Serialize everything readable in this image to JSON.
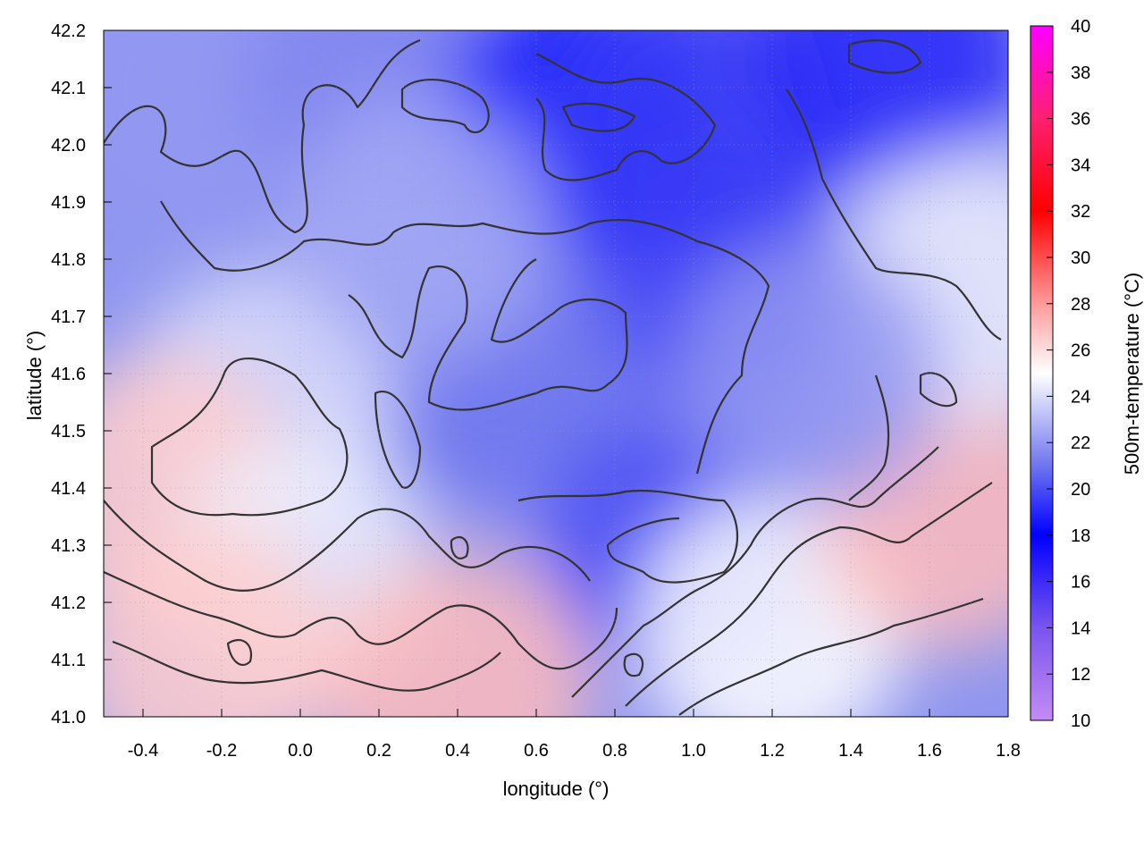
{
  "chart_data": {
    "type": "heatmap",
    "title": "",
    "xlabel": "longitude (°)",
    "ylabel": "latitude (°)",
    "colorbar_label": "500m-temperature (°C)",
    "xlim": [
      -0.5,
      1.8
    ],
    "ylim": [
      41.0,
      42.2
    ],
    "x_ticks": [
      "-0.4",
      "-0.2",
      "0.0",
      "0.2",
      "0.4",
      "0.6",
      "0.8",
      "1.0",
      "1.2",
      "1.4",
      "1.6",
      "1.8"
    ],
    "y_ticks": [
      "41.0",
      "41.1",
      "41.2",
      "41.3",
      "41.4",
      "41.5",
      "41.6",
      "41.7",
      "41.8",
      "41.9",
      "42.0",
      "42.1",
      "42.2"
    ],
    "colorbar_range": [
      10,
      40
    ],
    "colorbar_ticks": [
      "10",
      "12",
      "14",
      "16",
      "18",
      "20",
      "22",
      "24",
      "26",
      "28",
      "30",
      "32",
      "34",
      "36",
      "38",
      "40"
    ],
    "colormap": [
      {
        "value": 10,
        "color": "#c38cf5"
      },
      {
        "value": 14,
        "color": "#7a55ee"
      },
      {
        "value": 18,
        "color": "#0000ff"
      },
      {
        "value": 21,
        "color": "#6f75ee"
      },
      {
        "value": 25,
        "color": "#ffffff"
      },
      {
        "value": 28,
        "color": "#ff9a9a"
      },
      {
        "value": 32,
        "color": "#ff0000"
      },
      {
        "value": 36,
        "color": "#ff2070"
      },
      {
        "value": 40,
        "color": "#ff00ff"
      }
    ],
    "grid": true,
    "contours": true,
    "field_samples": [
      {
        "lon": -0.3,
        "lat": 42.1,
        "temp": 22.0
      },
      {
        "lon": 0.2,
        "lat": 42.1,
        "temp": 21.5
      },
      {
        "lon": 0.7,
        "lat": 42.05,
        "temp": 18.5
      },
      {
        "lon": 1.0,
        "lat": 42.05,
        "temp": 19.5
      },
      {
        "lon": 1.5,
        "lat": 42.15,
        "temp": 19.0
      },
      {
        "lon": 1.05,
        "lat": 41.78,
        "temp": 19.5
      },
      {
        "lon": 0.5,
        "lat": 41.6,
        "temp": 21.0
      },
      {
        "lon": 0.95,
        "lat": 41.3,
        "temp": 20.0
      },
      {
        "lon": -0.1,
        "lat": 41.55,
        "temp": 24.0
      },
      {
        "lon": -0.35,
        "lat": 41.4,
        "temp": 26.5
      },
      {
        "lon": 0.0,
        "lat": 41.25,
        "temp": 24.5
      },
      {
        "lon": -0.25,
        "lat": 41.1,
        "temp": 26.5
      },
      {
        "lon": 0.4,
        "lat": 41.05,
        "temp": 27.0
      },
      {
        "lon": 1.2,
        "lat": 41.15,
        "temp": 25.0
      },
      {
        "lon": 1.65,
        "lat": 41.35,
        "temp": 27.0
      },
      {
        "lon": 1.7,
        "lat": 41.75,
        "temp": 24.5
      },
      {
        "lon": 1.3,
        "lat": 41.6,
        "temp": 22.0
      },
      {
        "lon": 0.3,
        "lat": 41.85,
        "temp": 22.5
      }
    ]
  }
}
